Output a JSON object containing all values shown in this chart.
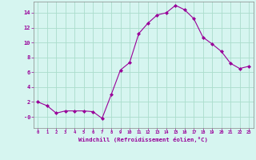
{
  "hours": [
    0,
    1,
    2,
    3,
    4,
    5,
    6,
    7,
    8,
    9,
    10,
    11,
    12,
    13,
    14,
    15,
    16,
    17,
    18,
    19,
    20,
    21,
    22,
    23
  ],
  "values": [
    2.0,
    1.5,
    0.5,
    0.8,
    0.8,
    0.8,
    0.7,
    -0.2,
    3.0,
    6.3,
    7.3,
    11.2,
    12.6,
    13.7,
    14.0,
    15.0,
    14.4,
    13.2,
    10.7,
    9.8,
    8.8,
    7.2,
    6.5,
    6.8
  ],
  "line_color": "#990099",
  "marker": "D",
  "marker_size": 2.0,
  "bg_color": "#d6f5f0",
  "grid_color": "#aaddcc",
  "xlabel": "Windchill (Refroidissement éolien,°C)",
  "xlabel_color": "#990099",
  "tick_color": "#990099",
  "spine_color": "#888888",
  "ylim": [
    -1.5,
    15.5
  ],
  "xlim": [
    -0.5,
    23.5
  ],
  "yticks": [
    0,
    2,
    4,
    6,
    8,
    10,
    12,
    14
  ],
  "ytick_labels": [
    "-0",
    "2",
    "4",
    "6",
    "8",
    "10",
    "12",
    "14"
  ],
  "xtick_labels": [
    "0",
    "1",
    "2",
    "3",
    "4",
    "5",
    "6",
    "7",
    "8",
    "9",
    "10",
    "11",
    "12",
    "13",
    "14",
    "15",
    "16",
    "17",
    "18",
    "19",
    "20",
    "21",
    "22",
    "23"
  ]
}
